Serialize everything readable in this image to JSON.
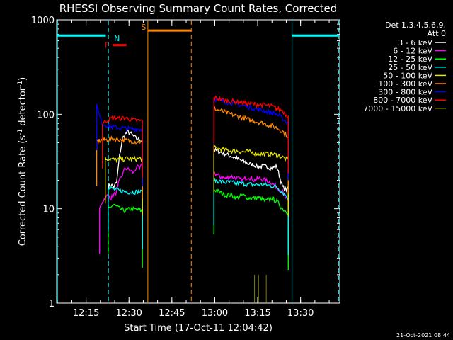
{
  "chart_data": {
    "type": "line",
    "title": "RHESSI Observing Summary Count Rates, Corrected",
    "xlabel": "Start Time (17-Oct-11 12:04:42)",
    "ylabel": "Corrected Count Rate (s⁻¹ detector⁻¹)",
    "ylabel_main": "Corrected Count Rate (s",
    "ylabel_sup1": "-1",
    "ylabel_mid": " detector",
    "ylabel_sup2": "-1",
    "ylabel_end": ")",
    "yscale": "log",
    "ylim": [
      1,
      1000
    ],
    "xlim_minutes": [
      0,
      99
    ],
    "x_ticks": [
      {
        "label": "12:15",
        "min": 10.3
      },
      {
        "label": "12:30",
        "min": 25.3
      },
      {
        "label": "12:45",
        "min": 40.3
      },
      {
        "label": "13:00",
        "min": 55.3
      },
      {
        "label": "13:15",
        "min": 70.3
      },
      {
        "label": "13:30",
        "min": 85.3
      }
    ],
    "y_tick_labels": [
      "1000",
      "100",
      "10",
      "1"
    ],
    "legend_header": [
      "Det 1,3,4,5,6,9,",
      "Att 0"
    ],
    "series": [
      {
        "name": "3 - 6 keV",
        "color": "#ffffff",
        "segments": [
          [
            [
              18,
              17
            ],
            [
              19,
              18
            ],
            [
              20,
              17
            ],
            [
              21,
              19
            ],
            [
              22,
              36
            ],
            [
              23,
              55
            ],
            [
              24,
              62
            ],
            [
              25,
              65
            ],
            [
              26,
              62
            ],
            [
              27,
              58
            ],
            [
              28,
              55
            ],
            [
              29,
              54
            ],
            [
              30,
              53
            ]
          ],
          [
            [
              55,
              42
            ],
            [
              57,
              40
            ],
            [
              59,
              38
            ],
            [
              61,
              36
            ],
            [
              63,
              34
            ],
            [
              65,
              32
            ],
            [
              67,
              30
            ],
            [
              69,
              29
            ],
            [
              71,
              28
            ],
            [
              73,
              28
            ],
            [
              75,
              27
            ],
            [
              77,
              28
            ],
            [
              79,
              17
            ],
            [
              80,
              16
            ],
            [
              81,
              16
            ]
          ]
        ]
      },
      {
        "name": "6 - 12 keV",
        "color": "#ff00ff",
        "segments": [
          [
            [
              15,
              10
            ],
            [
              16,
              12
            ],
            [
              17,
              13
            ],
            [
              18,
              14
            ],
            [
              19,
              13
            ],
            [
              20,
              14
            ],
            [
              21,
              15
            ],
            [
              22,
              20
            ],
            [
              23,
              23
            ],
            [
              24,
              27
            ],
            [
              25,
              26
            ],
            [
              26,
              25
            ],
            [
              27,
              24
            ],
            [
              28,
              28
            ],
            [
              29,
              26
            ],
            [
              30,
              30
            ]
          ],
          [
            [
              55,
              24
            ],
            [
              57,
              22
            ],
            [
              59,
              21
            ],
            [
              61,
              22
            ],
            [
              63,
              21
            ],
            [
              65,
              20
            ],
            [
              67,
              22
            ],
            [
              69,
              20
            ],
            [
              71,
              21
            ],
            [
              73,
              20
            ],
            [
              75,
              19
            ],
            [
              77,
              17
            ],
            [
              79,
              15
            ],
            [
              80,
              13
            ],
            [
              81,
              12
            ]
          ]
        ]
      },
      {
        "name": "12 - 25 keV",
        "color": "#00ff00",
        "segments": [
          [
            [
              18,
              10
            ],
            [
              20,
              11
            ],
            [
              22,
              10
            ],
            [
              24,
              9.5
            ],
            [
              26,
              10
            ],
            [
              28,
              9.8
            ],
            [
              30,
              9.5
            ]
          ],
          [
            [
              55,
              16
            ],
            [
              57,
              15
            ],
            [
              59,
              14
            ],
            [
              61,
              14
            ],
            [
              63,
              13
            ],
            [
              65,
              14
            ],
            [
              67,
              13
            ],
            [
              69,
              13
            ],
            [
              71,
              13
            ],
            [
              73,
              12
            ],
            [
              75,
              13
            ],
            [
              77,
              12
            ],
            [
              79,
              10
            ],
            [
              80,
              9.5
            ],
            [
              81,
              9
            ]
          ]
        ]
      },
      {
        "name": "25 - 50 keV",
        "color": "#00ffff",
        "segments": [
          [
            [
              0,
              680
            ],
            [
              17.2,
              680
            ]
          ],
          [
            [
              18,
              17
            ],
            [
              20,
              16
            ],
            [
              22,
              15.5
            ],
            [
              24,
              15.2
            ],
            [
              26,
              15
            ],
            [
              28,
              15.1
            ],
            [
              30,
              15
            ]
          ],
          [
            [
              55,
              20
            ],
            [
              57,
              19.5
            ],
            [
              59,
              19
            ],
            [
              61,
              19
            ],
            [
              63,
              18.5
            ],
            [
              65,
              18.5
            ],
            [
              67,
              18.2
            ],
            [
              69,
              18
            ],
            [
              71,
              18
            ],
            [
              73,
              18
            ],
            [
              75,
              17.5
            ],
            [
              77,
              17
            ],
            [
              79,
              15
            ],
            [
              80,
              14
            ],
            [
              81,
              13
            ]
          ],
          [
            [
              82.3,
              680
            ],
            [
              98.6,
              680
            ]
          ]
        ]
      },
      {
        "name": "50 - 100 keV",
        "color": "#e6e600",
        "segments": [
          [
            [
              17,
              34
            ],
            [
              19,
              33.5
            ],
            [
              21,
              33
            ],
            [
              23,
              33.5
            ],
            [
              25,
              34
            ],
            [
              27,
              33.5
            ],
            [
              29,
              34
            ],
            [
              30,
              33.5
            ]
          ],
          [
            [
              55,
              44
            ],
            [
              57,
              43
            ],
            [
              59,
              42
            ],
            [
              61,
              41
            ],
            [
              63,
              41
            ],
            [
              65,
              40
            ],
            [
              67,
              40
            ],
            [
              69,
              39
            ],
            [
              71,
              38
            ],
            [
              73,
              38
            ],
            [
              75,
              38
            ],
            [
              77,
              37
            ],
            [
              79,
              35
            ],
            [
              80,
              34
            ],
            [
              81,
              33
            ]
          ]
        ]
      },
      {
        "name": "100 - 300 keV",
        "color": "#ff8800",
        "segments": [
          [
            [
              14,
              52
            ],
            [
              16,
              53
            ],
            [
              18,
              54
            ],
            [
              20,
              55
            ],
            [
              22,
              54
            ],
            [
              24,
              53
            ],
            [
              26,
              52
            ],
            [
              28,
              51
            ],
            [
              30,
              51
            ]
          ],
          [
            [
              55,
              115
            ],
            [
              57,
              110
            ],
            [
              59,
              105
            ],
            [
              61,
              100
            ],
            [
              63,
              96
            ],
            [
              65,
              92
            ],
            [
              67,
              88
            ],
            [
              69,
              85
            ],
            [
              71,
              82
            ],
            [
              73,
              79
            ],
            [
              75,
              76
            ],
            [
              77,
              72
            ],
            [
              79,
              66
            ],
            [
              80,
              62
            ],
            [
              81,
              58
            ]
          ]
        ]
      },
      {
        "name": "300 - 800 keV",
        "color": "#0000ff",
        "segments": [
          [
            [
              14,
              125
            ],
            [
              15,
              95
            ],
            [
              16,
              80
            ],
            [
              18,
              75
            ],
            [
              20,
              73
            ],
            [
              22,
              72
            ],
            [
              24,
              71
            ],
            [
              26,
              70
            ],
            [
              28,
              70
            ],
            [
              30,
              69
            ]
          ],
          [
            [
              55,
              145
            ],
            [
              57,
              140
            ],
            [
              59,
              136
            ],
            [
              61,
              132
            ],
            [
              63,
              128
            ],
            [
              65,
              124
            ],
            [
              67,
              120
            ],
            [
              69,
              116
            ],
            [
              71,
              112
            ],
            [
              73,
              108
            ],
            [
              75,
              104
            ],
            [
              77,
              100
            ],
            [
              79,
              90
            ],
            [
              80,
              85
            ],
            [
              81,
              80
            ]
          ]
        ]
      },
      {
        "name": "800 - 7000 keV",
        "color": "#ff0000",
        "segments": [
          [
            [
              16,
              80
            ],
            [
              18,
              88
            ],
            [
              20,
              92
            ],
            [
              22,
              90
            ],
            [
              24,
              92
            ],
            [
              26,
              88
            ],
            [
              28,
              86
            ],
            [
              30,
              85
            ]
          ],
          [
            [
              55,
              150
            ],
            [
              57,
              145
            ],
            [
              59,
              140
            ],
            [
              61,
              138
            ],
            [
              63,
              136
            ],
            [
              65,
              133
            ],
            [
              67,
              130
            ],
            [
              69,
              128
            ],
            [
              71,
              126
            ],
            [
              73,
              125
            ],
            [
              75,
              122
            ],
            [
              77,
              115
            ],
            [
              79,
              110
            ],
            [
              80,
              100
            ],
            [
              81,
              95
            ]
          ]
        ]
      },
      {
        "name": "7000 - 15000 keV",
        "color": "#808000",
        "segments": []
      }
    ],
    "markers": [
      {
        "label": "F",
        "color": "#ff0000",
        "x_start": 19.6,
        "x_end": 24.4,
        "y": 540
      },
      {
        "label": "N",
        "color": "#00ffff",
        "x_start": 19.6,
        "x_end": 19.6,
        "y": 640
      },
      {
        "label": "S",
        "color": "#ff8800",
        "x_start": 31.9,
        "x_end": 47.1,
        "y": 770
      }
    ],
    "vertical_lines": [
      {
        "color": "#00ffff",
        "style": "solid",
        "min": 0.3
      },
      {
        "color": "#00ffff",
        "style": "dashed",
        "min": 18.1
      },
      {
        "color": "#ff8800",
        "style": "solid",
        "min": 31.9
      },
      {
        "color": "#ff8800",
        "style": "dashed",
        "min": 47.1
      },
      {
        "color": "#00ffff",
        "style": "solid",
        "min": 82.3
      },
      {
        "color": "#00ffff",
        "style": "dashed",
        "min": 98.6
      }
    ],
    "spikes": [
      {
        "color": "#808000",
        "min": 69.2,
        "top": 2.0
      },
      {
        "color": "#808000",
        "min": 70.6,
        "top": 2.0
      },
      {
        "color": "#808000",
        "min": 73.3,
        "top": 2.0
      }
    ]
  },
  "footer": {
    "timestamp": "21-Oct-2021 08:44"
  }
}
